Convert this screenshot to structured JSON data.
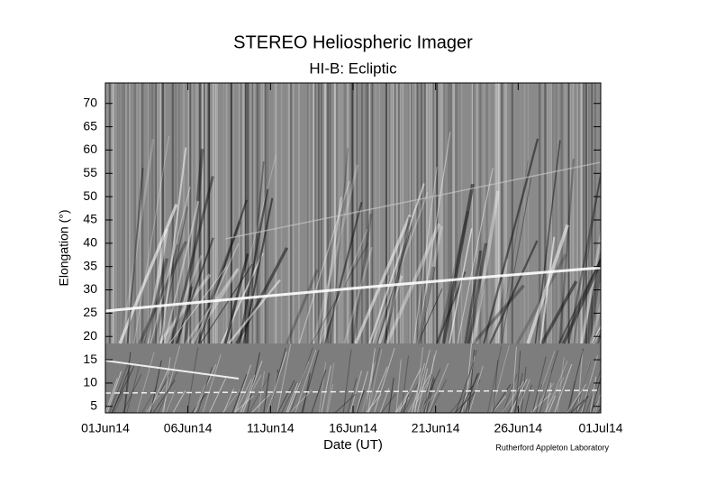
{
  "chart_data": {
    "type": "jmap",
    "title": "STEREO Heliospheric Imager",
    "subtitle": "HI-B: Ecliptic",
    "x_label": "Date (UT)",
    "y_label": "Elongation (°)",
    "credit": "Rutherford Appleton Laboratory",
    "xticks": [
      "01Jun14",
      "06Jun14",
      "11Jun14",
      "16Jun14",
      "21Jun14",
      "26Jun14",
      "01Jul14"
    ],
    "ylim": [
      3.6,
      74.4
    ],
    "yticks": [
      5,
      10,
      15,
      20,
      25,
      30,
      35,
      40,
      45,
      50,
      55,
      60,
      65,
      70
    ]
  }
}
